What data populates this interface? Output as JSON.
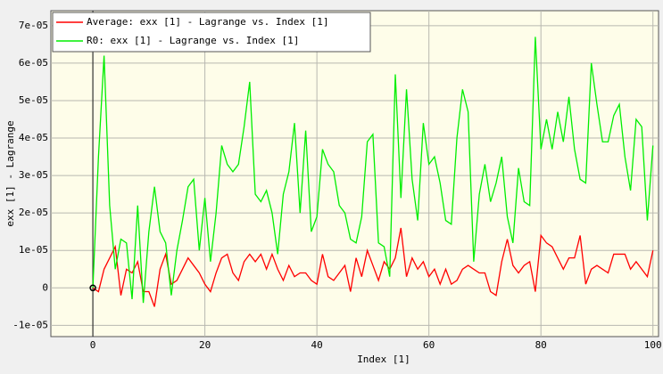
{
  "chart_data": {
    "type": "line",
    "xlabel": "Index [1]",
    "ylabel": "exx [1] - Lagrange",
    "x": [
      0,
      1,
      2,
      3,
      4,
      5,
      6,
      7,
      8,
      9,
      10,
      11,
      12,
      13,
      14,
      15,
      16,
      17,
      18,
      19,
      20,
      21,
      22,
      23,
      24,
      25,
      26,
      27,
      28,
      29,
      30,
      31,
      32,
      33,
      34,
      35,
      36,
      37,
      38,
      39,
      40,
      41,
      42,
      43,
      44,
      45,
      46,
      47,
      48,
      49,
      50,
      51,
      52,
      53,
      54,
      55,
      56,
      57,
      58,
      59,
      60,
      61,
      62,
      63,
      64,
      65,
      66,
      67,
      68,
      69,
      70,
      71,
      72,
      73,
      74,
      75,
      76,
      77,
      78,
      79,
      80,
      81,
      82,
      83,
      84,
      85,
      86,
      87,
      88,
      89,
      90,
      91,
      92,
      93,
      94,
      95,
      96,
      97,
      98,
      99,
      100
    ],
    "series": [
      {
        "name": "Average: exx [1] - Lagrange vs. Index [1]",
        "color": "#ff0000",
        "values": [
          0,
          -1e-06,
          5e-06,
          8e-06,
          1.1e-05,
          -2e-06,
          5e-06,
          4e-06,
          7e-06,
          -1e-06,
          -1e-06,
          -5e-06,
          5e-06,
          9e-06,
          1e-06,
          2e-06,
          5e-06,
          8e-06,
          6e-06,
          4e-06,
          1e-06,
          -1e-06,
          4e-06,
          8e-06,
          9e-06,
          4e-06,
          2e-06,
          7e-06,
          9e-06,
          7e-06,
          9e-06,
          5e-06,
          9e-06,
          5e-06,
          2e-06,
          6e-06,
          3e-06,
          4e-06,
          4e-06,
          2e-06,
          1e-06,
          9e-06,
          3e-06,
          2e-06,
          4e-06,
          6e-06,
          -1e-06,
          8e-06,
          3e-06,
          1e-05,
          6e-06,
          2e-06,
          7e-06,
          5e-06,
          8e-06,
          1.6e-05,
          3e-06,
          8e-06,
          5e-06,
          7e-06,
          3e-06,
          5e-06,
          1e-06,
          5e-06,
          1e-06,
          2e-06,
          5e-06,
          6e-06,
          5e-06,
          4e-06,
          4e-06,
          -1e-06,
          -2e-06,
          7e-06,
          1.3e-05,
          6e-06,
          4e-06,
          6e-06,
          7e-06,
          -1e-06,
          1.4e-05,
          1.2e-05,
          1.1e-05,
          8e-06,
          5e-06,
          8e-06,
          8e-06,
          1.4e-05,
          1e-06,
          5e-06,
          6e-06,
          5e-06,
          4e-06,
          9e-06,
          9e-06,
          9e-06,
          5e-06,
          7e-06,
          5e-06,
          3e-06,
          1e-05
        ]
      },
      {
        "name": "R0: exx [1] - Lagrange vs. Index [1]",
        "color": "#00ee00",
        "values": [
          0,
          3.5e-05,
          6.2e-05,
          2.2e-05,
          5e-06,
          1.3e-05,
          1.2e-05,
          -3e-06,
          2.2e-05,
          -4e-06,
          1.5e-05,
          2.7e-05,
          1.5e-05,
          1.2e-05,
          -2e-06,
          1e-05,
          1.8e-05,
          2.7e-05,
          2.9e-05,
          1e-05,
          2.4e-05,
          7e-06,
          2e-05,
          3.8e-05,
          3.3e-05,
          3.1e-05,
          3.3e-05,
          4.3e-05,
          5.5e-05,
          2.5e-05,
          2.3e-05,
          2.6e-05,
          2e-05,
          9e-06,
          2.5e-05,
          3.1e-05,
          4.4e-05,
          2e-05,
          4.2e-05,
          1.5e-05,
          1.9e-05,
          3.7e-05,
          3.3e-05,
          3.1e-05,
          2.2e-05,
          2e-05,
          1.3e-05,
          1.2e-05,
          1.9e-05,
          3.9e-05,
          4.1e-05,
          1.2e-05,
          1.1e-05,
          3e-06,
          5.7e-05,
          2.4e-05,
          5.3e-05,
          2.9e-05,
          1.8e-05,
          4.4e-05,
          3.3e-05,
          3.5e-05,
          2.8e-05,
          1.8e-05,
          1.7e-05,
          4e-05,
          5.3e-05,
          4.7e-05,
          7e-06,
          2.5e-05,
          3.3e-05,
          2.3e-05,
          2.8e-05,
          3.5e-05,
          1.9e-05,
          1.2e-05,
          3.2e-05,
          2.3e-05,
          2.2e-05,
          6.7e-05,
          3.7e-05,
          4.5e-05,
          3.7e-05,
          4.7e-05,
          3.9e-05,
          5.1e-05,
          3.7e-05,
          2.9e-05,
          2.8e-05,
          6e-05,
          4.9e-05,
          3.9e-05,
          3.9e-05,
          4.6e-05,
          4.9e-05,
          3.5e-05,
          2.6e-05,
          4.5e-05,
          4.3e-05,
          1.8e-05,
          3.8e-05
        ]
      }
    ],
    "xlim": [
      -7.5,
      101
    ],
    "xticks": [
      0,
      20,
      40,
      60,
      80,
      100
    ],
    "ylim": [
      -1.3e-05,
      7.4e-05
    ],
    "yticks": [
      {
        "value": -1e-05,
        "label": "-1e-05"
      },
      0,
      {
        "value": 1e-05,
        "label": "1e-05"
      },
      {
        "value": 2e-05,
        "label": "2e-05"
      },
      {
        "value": 3e-05,
        "label": "3e-05"
      },
      {
        "value": 4e-05,
        "label": "4e-05"
      },
      {
        "value": 5e-05,
        "label": "5e-05"
      },
      {
        "value": 6e-05,
        "label": "6e-05"
      },
      {
        "value": 7e-05,
        "label": "7e-05"
      }
    ],
    "grid": true,
    "legend": "top-left"
  }
}
